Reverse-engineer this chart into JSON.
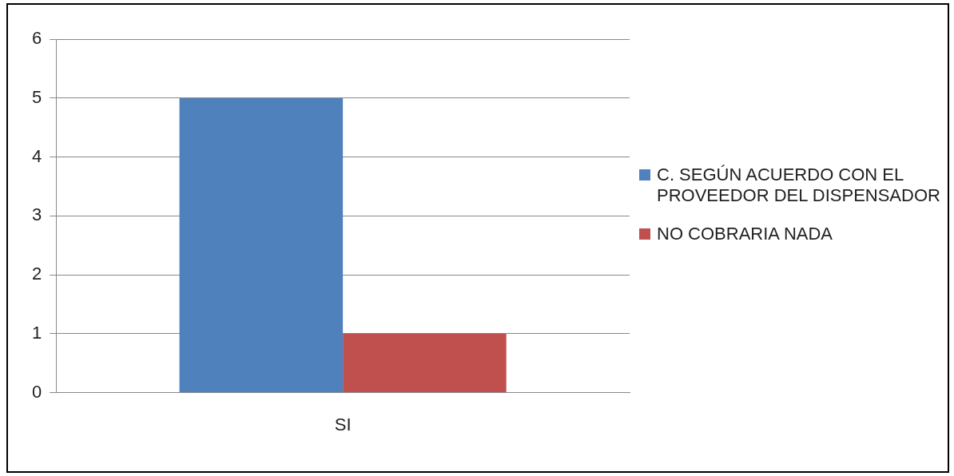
{
  "chart_data": {
    "type": "bar",
    "categories": [
      "SI"
    ],
    "series": [
      {
        "name": "C. SEGÚN ACUERDO CON EL PROVEEDOR DEL DISPENSADOR",
        "color": "#4f81bd",
        "values": [
          5
        ]
      },
      {
        "name": "NO COBRARIA NADA",
        "color": "#c0504d",
        "values": [
          1
        ]
      }
    ],
    "ylim": [
      0,
      6
    ],
    "yticks": [
      0,
      1,
      2,
      3,
      4,
      5,
      6
    ],
    "grid": "y",
    "legend": "right"
  }
}
